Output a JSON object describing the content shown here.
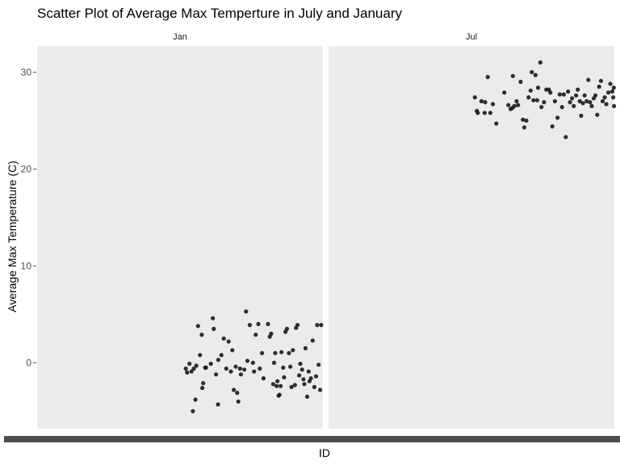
{
  "chart_data": {
    "type": "scatter",
    "title": "Scatter Plot of Average Max Temperture in July and January",
    "xlabel": "ID",
    "ylabel": "Average Max Temperature (C)",
    "ylim": [
      -6.8,
      32.7
    ],
    "y_ticks": [
      0,
      10,
      20,
      30
    ],
    "grid": false,
    "legend": "none",
    "panel_color": "#ebebeb",
    "point_color": "#1a1a1a",
    "axis_bar_color": "#4d4d4d",
    "facets": [
      {
        "label": "Jan",
        "xlim": [
          0,
          100
        ],
        "points": [
          [
            52.0,
            -0.6
          ],
          [
            52.5,
            -1.0
          ],
          [
            53.3,
            -0.1
          ],
          [
            54.0,
            -0.9
          ],
          [
            54.8,
            -0.6
          ],
          [
            55.7,
            -0.3
          ],
          [
            54.5,
            -5.0
          ],
          [
            55.4,
            -3.8
          ],
          [
            56.3,
            3.8
          ],
          [
            57.0,
            0.8
          ],
          [
            57.6,
            2.9
          ],
          [
            58.1,
            -2.1
          ],
          [
            57.8,
            -2.6
          ],
          [
            58.8,
            -0.5
          ],
          [
            59.1,
            -0.5
          ],
          [
            60.8,
            -0.1
          ],
          [
            61.5,
            4.6
          ],
          [
            61.8,
            3.5
          ],
          [
            62.6,
            -1.2
          ],
          [
            63.4,
            0.3
          ],
          [
            63.3,
            -4.3
          ],
          [
            64.5,
            0.8
          ],
          [
            65.3,
            2.5
          ],
          [
            66.2,
            -0.6
          ],
          [
            67.0,
            2.2
          ],
          [
            67.8,
            -0.9
          ],
          [
            68.3,
            1.3
          ],
          [
            68.8,
            -2.8
          ],
          [
            69.5,
            -0.4
          ],
          [
            70.0,
            -3.1
          ],
          [
            70.4,
            -4.0
          ],
          [
            71.0,
            -0.6
          ],
          [
            71.3,
            -1.2
          ],
          [
            72.5,
            -0.7
          ],
          [
            73.1,
            5.3
          ],
          [
            73.6,
            0.2
          ],
          [
            74.4,
            3.9
          ],
          [
            75.5,
            0.0
          ],
          [
            75.9,
            -0.9
          ],
          [
            76.5,
            2.9
          ],
          [
            77.4,
            4.0
          ],
          [
            77.9,
            -0.6
          ],
          [
            78.7,
            1.0
          ],
          [
            79.2,
            -1.6
          ],
          [
            80.8,
            4.0
          ],
          [
            81.4,
            2.7
          ],
          [
            81.9,
            3.0
          ],
          [
            82.6,
            -2.2
          ],
          [
            82.9,
            0.0
          ],
          [
            83.3,
            1.0
          ],
          [
            83.8,
            -2.4
          ],
          [
            84.1,
            -1.9
          ],
          [
            84.5,
            -3.4
          ],
          [
            84.8,
            -3.3
          ],
          [
            85.2,
            -2.4
          ],
          [
            85.5,
            1.1
          ],
          [
            86.1,
            -0.5
          ],
          [
            86.4,
            -1.5
          ],
          [
            86.9,
            3.2
          ],
          [
            87.4,
            3.5
          ],
          [
            88.1,
            1.0
          ],
          [
            88.6,
            -0.4
          ],
          [
            89.0,
            -2.5
          ],
          [
            89.5,
            1.3
          ],
          [
            90.2,
            -2.3
          ],
          [
            90.6,
            3.6
          ],
          [
            91.1,
            3.9
          ],
          [
            91.7,
            -1.3
          ],
          [
            92.1,
            -0.1
          ],
          [
            92.7,
            -0.7
          ],
          [
            93.2,
            -1.7
          ],
          [
            93.5,
            -2.2
          ],
          [
            93.9,
            1.5
          ],
          [
            94.5,
            -3.5
          ],
          [
            95.0,
            -0.9
          ],
          [
            95.3,
            -1.9
          ],
          [
            95.8,
            -1.6
          ],
          [
            96.4,
            2.3
          ],
          [
            97.0,
            -2.5
          ],
          [
            97.6,
            -1.4
          ],
          [
            98.0,
            3.9
          ],
          [
            98.5,
            -0.2
          ],
          [
            99.0,
            -2.8
          ],
          [
            99.4,
            3.9
          ]
        ]
      },
      {
        "label": "Jul",
        "xlim": [
          100,
          200
        ],
        "points": [
          [
            151.2,
            27.4
          ],
          [
            151.9,
            26.0
          ],
          [
            152.2,
            25.8
          ],
          [
            153.5,
            27.0
          ],
          [
            154.8,
            26.9
          ],
          [
            154.6,
            25.8
          ],
          [
            155.7,
            29.5
          ],
          [
            156.6,
            25.8
          ],
          [
            157.5,
            26.7
          ],
          [
            158.7,
            24.7
          ],
          [
            161.5,
            27.9
          ],
          [
            162.9,
            26.6
          ],
          [
            163.7,
            26.2
          ],
          [
            164.3,
            26.3
          ],
          [
            164.5,
            29.6
          ],
          [
            165.0,
            26.5
          ],
          [
            165.8,
            27.0
          ],
          [
            166.3,
            26.6
          ],
          [
            167.2,
            29.0
          ],
          [
            168.0,
            25.1
          ],
          [
            168.5,
            24.3
          ],
          [
            169.2,
            25.0
          ],
          [
            170.0,
            27.4
          ],
          [
            170.7,
            28.1
          ],
          [
            171.1,
            30.0
          ],
          [
            171.7,
            27.1
          ],
          [
            172.4,
            29.7
          ],
          [
            173.0,
            27.1
          ],
          [
            173.3,
            28.4
          ],
          [
            174.1,
            31.0
          ],
          [
            174.5,
            26.4
          ],
          [
            175.4,
            26.9
          ],
          [
            176.2,
            28.2
          ],
          [
            177.1,
            28.2
          ],
          [
            177.6,
            27.9
          ],
          [
            178.3,
            24.4
          ],
          [
            179.2,
            27.0
          ],
          [
            180.1,
            25.3
          ],
          [
            180.9,
            27.7
          ],
          [
            181.7,
            26.4
          ],
          [
            182.3,
            27.7
          ],
          [
            183.0,
            23.3
          ],
          [
            183.8,
            28.0
          ],
          [
            184.5,
            26.9
          ],
          [
            185.2,
            27.3
          ],
          [
            185.8,
            26.5
          ],
          [
            186.6,
            27.6
          ],
          [
            187.2,
            28.2
          ],
          [
            187.9,
            27.0
          ],
          [
            188.4,
            25.5
          ],
          [
            189.0,
            26.8
          ],
          [
            189.6,
            27.6
          ],
          [
            190.3,
            27.0
          ],
          [
            190.9,
            29.2
          ],
          [
            191.5,
            26.9
          ],
          [
            192.1,
            26.5
          ],
          [
            192.8,
            27.3
          ],
          [
            193.4,
            27.6
          ],
          [
            194.0,
            25.6
          ],
          [
            194.7,
            28.5
          ],
          [
            195.3,
            29.1
          ],
          [
            195.9,
            27.0
          ],
          [
            196.6,
            27.4
          ],
          [
            197.2,
            26.7
          ],
          [
            197.9,
            27.9
          ],
          [
            198.6,
            28.8
          ],
          [
            199.3,
            28.0
          ],
          [
            199.6,
            27.4
          ],
          [
            199.8,
            28.4
          ],
          [
            199.9,
            26.5
          ]
        ]
      }
    ]
  }
}
